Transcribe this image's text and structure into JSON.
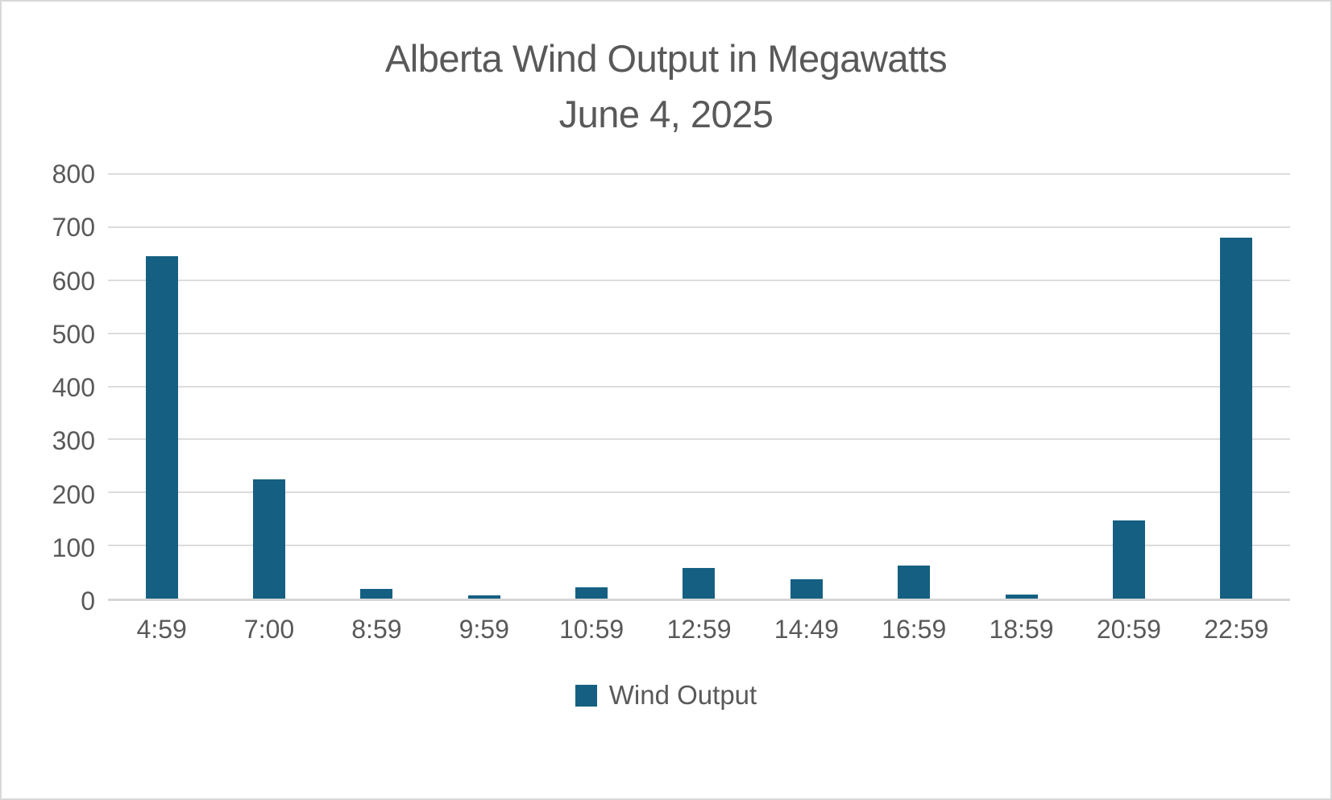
{
  "window": {
    "background": "#ffffff",
    "border_color": "#d8d8d8"
  },
  "chart_data": {
    "type": "bar",
    "title": "Alberta Wind Output in Megawatts",
    "subtitle": "June 4, 2025",
    "categories": [
      "4:59",
      "7:00",
      "8:59",
      "9:59",
      "10:59",
      "12:59",
      "14:49",
      "16:59",
      "18:59",
      "20:59",
      "22:59"
    ],
    "series": [
      {
        "name": "Wind Output",
        "values": [
          645,
          225,
          18,
          6,
          22,
          58,
          36,
          63,
          8,
          148,
          680
        ]
      }
    ],
    "xlabel": "",
    "ylabel": "",
    "ylim": [
      0,
      800
    ],
    "ytick_step": 100,
    "grid": true,
    "legend_position": "bottom",
    "colors": {
      "bar": "#156082",
      "gridline": "#dcdcdc",
      "axis_line": "#d6d6d6",
      "text": "#595959"
    },
    "legend": {
      "entries": [
        {
          "label": "Wind Output",
          "color": "#156082"
        }
      ]
    }
  }
}
